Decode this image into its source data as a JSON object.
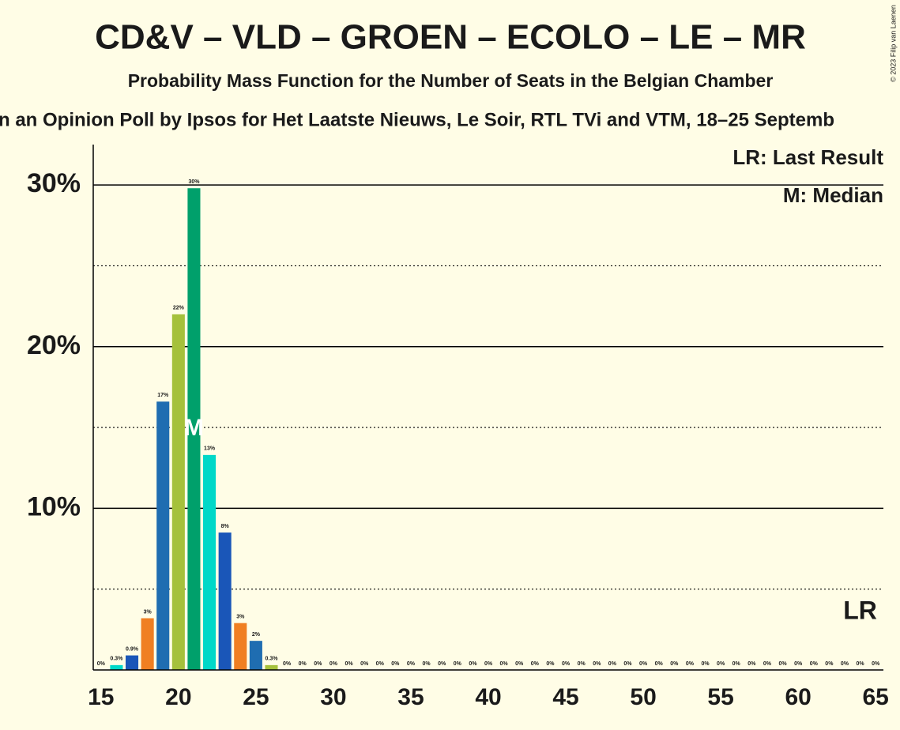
{
  "chart_data": {
    "type": "bar",
    "title": "CD&V – VLD – GROEN – ECOLO – LE – MR",
    "subtitle": "Probability Mass Function for the Number of Seats in the Belgian Chamber",
    "source_line": "n an Opinion Poll by Ipsos for Het Laatste Nieuws, Le Soir, RTL TVi and VTM, 18–25 Septemb",
    "copyright": "© 2023 Filip van Laenen",
    "x": [
      15,
      16,
      17,
      18,
      19,
      20,
      21,
      22,
      23,
      24,
      25,
      26,
      27,
      28,
      29,
      30,
      31,
      32,
      33,
      34,
      35,
      36,
      37,
      38,
      39,
      40,
      41,
      42,
      43,
      44,
      45,
      46,
      47,
      48,
      49,
      50,
      51,
      52,
      53,
      54,
      55,
      56,
      57,
      58,
      59,
      60,
      61,
      62,
      63,
      64,
      65
    ],
    "values": [
      0,
      0.3,
      0.9,
      3.2,
      16.6,
      22.0,
      29.8,
      13.3,
      8.5,
      2.9,
      1.8,
      0.3,
      0,
      0,
      0,
      0,
      0,
      0,
      0,
      0,
      0,
      0,
      0,
      0,
      0,
      0,
      0,
      0,
      0,
      0,
      0,
      0,
      0,
      0,
      0,
      0,
      0,
      0,
      0,
      0,
      0,
      0,
      0,
      0,
      0,
      0,
      0,
      0,
      0,
      0,
      0
    ],
    "value_labels": [
      "0%",
      "0.3%",
      "0.9%",
      "3%",
      "17%",
      "22%",
      "30%",
      "13%",
      "8%",
      "3%",
      "2%",
      "0.3%",
      "0%",
      "0%",
      "0%",
      "0%",
      "0%",
      "0%",
      "0%",
      "0%",
      "0%",
      "0%",
      "0%",
      "0%",
      "0%",
      "0%",
      "0%",
      "0%",
      "0%",
      "0%",
      "0%",
      "0%",
      "0%",
      "0%",
      "0%",
      "0%",
      "0%",
      "0%",
      "0%",
      "0%",
      "0%",
      "0%",
      "0%",
      "0%",
      "0%",
      "0%",
      "0%",
      "0%",
      "0%",
      "0%",
      "0%"
    ],
    "colors": [
      "#00a06b",
      "#00d8c8",
      "#1a56b8",
      "#f07f22",
      "#1f6db1",
      "#a5c13b"
    ],
    "xlim": [
      14.5,
      65.5
    ],
    "xticks": [
      15,
      20,
      25,
      30,
      35,
      40,
      45,
      50,
      55,
      60,
      65
    ],
    "ylim": [
      0,
      32.5
    ],
    "yticks": [
      {
        "value": 10,
        "label": "10%"
      },
      {
        "value": 20,
        "label": "20%"
      },
      {
        "value": 30,
        "label": "30%"
      }
    ],
    "minor_gridlines": [
      5,
      15,
      25
    ],
    "median": 21,
    "median_label": "M",
    "last_result": 64,
    "last_result_label": "LR",
    "legend": [
      "LR: Last Result",
      "M: Median"
    ]
  }
}
